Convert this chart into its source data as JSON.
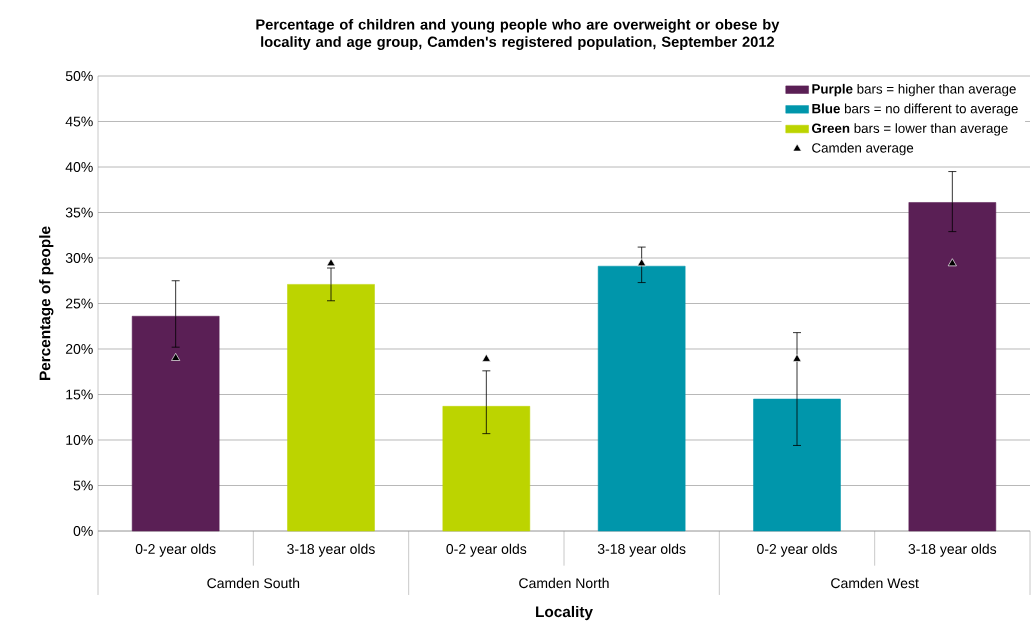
{
  "chart_data": {
    "type": "bar",
    "title": "Percentage of children and young people who are overweight or obese by locality and age group, Camden's registered population, September 2012",
    "xlabel": "Locality",
    "ylabel": "Percentage of people",
    "categories": [
      "0-2 year olds",
      "3-18 year olds",
      "0-2 year olds",
      "3-18 year olds",
      "0-2 year olds",
      "3-18 year olds"
    ],
    "annotations": [
      "Camden South",
      "Camden North",
      "Camden West"
    ],
    "series": [
      {
        "name": "**Purple** bars = higher than average",
        "color": "#5a1f55",
        "values": [
          23.6,
          null,
          null,
          null,
          null,
          36.1
        ],
        "errors": [
          [
            20.2,
            27.5
          ],
          null,
          null,
          null,
          null,
          [
            32.9,
            39.5
          ]
        ]
      },
      {
        "name": "**Blue** bars = no different to average",
        "color": "#0096ab",
        "values": [
          null,
          null,
          null,
          29.1,
          14.5,
          null
        ],
        "errors": [
          null,
          null,
          null,
          [
            27.3,
            31.2
          ],
          [
            9.4,
            21.8
          ],
          null
        ]
      },
      {
        "name": "**Green** bars = lower than average",
        "color": "#bcd400",
        "values": [
          null,
          27.1,
          13.7,
          null,
          null,
          null
        ],
        "errors": [
          null,
          [
            25.3,
            28.9
          ],
          [
            10.7,
            17.6
          ],
          null,
          null,
          null
        ]
      },
      {
        "name": "Camden average",
        "type": "scatter",
        "color": "#000000",
        "values": [
          19.0,
          29.4,
          18.9,
          29.4,
          18.9,
          29.4
        ]
      }
    ],
    "ylim": [
      0,
      50
    ],
    "yticks": [
      {
        "value": 0,
        "label": "0%"
      },
      {
        "value": 5,
        "label": "5%"
      },
      {
        "value": 10,
        "label": "10%"
      },
      {
        "value": 15,
        "label": "15%"
      },
      {
        "value": 20,
        "label": "20%"
      },
      {
        "value": 25,
        "label": "25%"
      },
      {
        "value": 30,
        "label": "30%"
      },
      {
        "value": 35,
        "label": "35%"
      },
      {
        "value": 40,
        "label": "40%"
      },
      {
        "value": 45,
        "label": "45%"
      },
      {
        "value": 50,
        "label": "50%"
      }
    ],
    "grid": "y",
    "legend": "top right",
    "marker": "triangle"
  }
}
